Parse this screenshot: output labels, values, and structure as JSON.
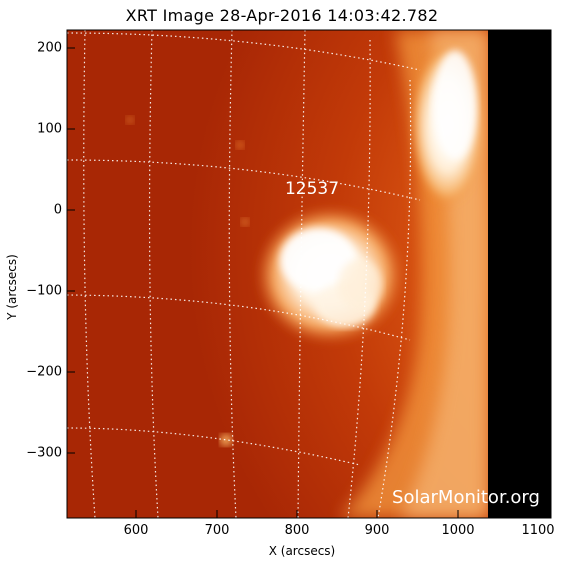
{
  "title": "XRT Image 28-Apr-2016 14:03:42.782",
  "xlabel": "X (arcsecs)",
  "ylabel": "Y (arcsecs)",
  "x_ticks": [
    "600",
    "700",
    "800",
    "900",
    "1000",
    "1100"
  ],
  "y_ticks": [
    "200",
    "100",
    "0",
    "-100",
    "-200",
    "-300"
  ],
  "region_label": "12537",
  "watermark": "SolarMonitor.org",
  "colors": {
    "disk_dark": "#b22b05",
    "disk_mid": "#d84a10",
    "limb": "#f08a2a",
    "bright": "#fff6e8",
    "off_disk": "#000000"
  }
}
